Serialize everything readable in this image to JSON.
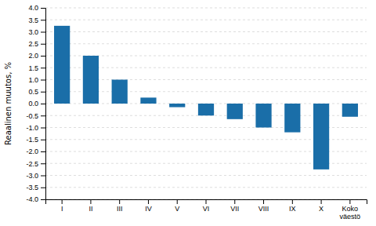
{
  "chart_data": {
    "type": "bar",
    "ylabel": "Reaalinen muutos, %",
    "categories": [
      "I",
      "II",
      "III",
      "IV",
      "V",
      "VI",
      "VII",
      "VIII",
      "IX",
      "X",
      "Koko\nväestö"
    ],
    "values": [
      3.25,
      2.0,
      1.0,
      0.25,
      -0.15,
      -0.5,
      -0.65,
      -1.0,
      -1.2,
      -2.75,
      -0.55
    ],
    "color": "#1a6ea8",
    "ylim": [
      -4.0,
      4.0
    ],
    "yticks": [
      {
        "value": -4.0,
        "label": "-4.0"
      },
      -3.5,
      {
        "value": -3.0,
        "label": "-3.0"
      },
      -2.5,
      {
        "value": -2.0,
        "label": "-2.0"
      },
      -1.5,
      {
        "value": -1.0,
        "label": "-1.0"
      },
      -0.5,
      {
        "value": 0.0,
        "label": "0.0"
      },
      0.5,
      {
        "value": 1.0,
        "label": "1.0"
      },
      1.5,
      {
        "value": 2.0,
        "label": "2.0"
      },
      2.5,
      {
        "value": 3.0,
        "label": "3.0"
      },
      3.5,
      {
        "value": 4.0,
        "label": "4.0"
      }
    ],
    "grid": true
  }
}
